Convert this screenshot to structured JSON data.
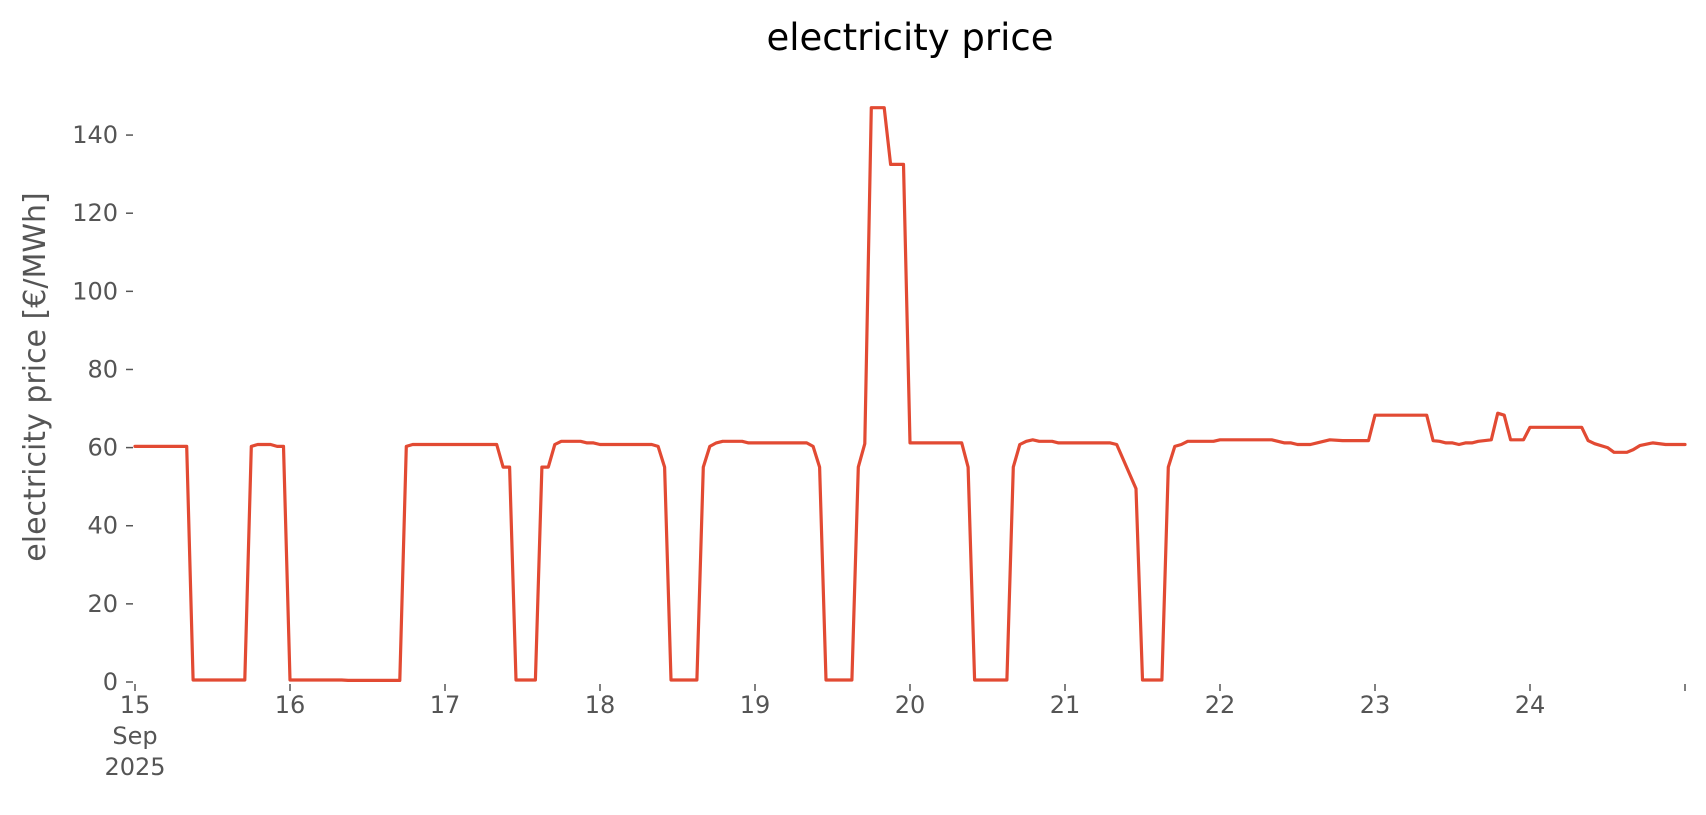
{
  "chart_data": {
    "type": "line",
    "title": "electricity price",
    "xlabel": "",
    "ylabel": "electricity price [€/MWh]",
    "x_is_date": true,
    "xlim": [
      "2025-09-15 00:00",
      "2025-09-25 00:00"
    ],
    "ylim": [
      0,
      150
    ],
    "grid": false,
    "legend": "none",
    "line_color": "#E24A33",
    "yticks": [
      0,
      20,
      40,
      60,
      80,
      100,
      120,
      140
    ],
    "ytick_labels": [
      "0",
      "20",
      "40",
      "60",
      "80",
      "100",
      "120",
      "140"
    ],
    "xticks": [
      {
        "date": "2025-09-15",
        "lines": [
          "15",
          "Sep",
          "2025"
        ]
      },
      {
        "date": "2025-09-16",
        "lines": [
          "16"
        ]
      },
      {
        "date": "2025-09-17",
        "lines": [
          "17"
        ]
      },
      {
        "date": "2025-09-18",
        "lines": [
          "18"
        ]
      },
      {
        "date": "2025-09-19",
        "lines": [
          "19"
        ]
      },
      {
        "date": "2025-09-20",
        "lines": [
          "20"
        ]
      },
      {
        "date": "2025-09-21",
        "lines": [
          "21"
        ]
      },
      {
        "date": "2025-09-22",
        "lines": [
          "22"
        ]
      },
      {
        "date": "2025-09-23",
        "lines": [
          "23"
        ]
      },
      {
        "date": "2025-09-24",
        "lines": [
          "24"
        ]
      },
      {
        "date": "2025-09-25",
        "lines": [
          ""
        ]
      }
    ],
    "series": [
      {
        "points": [
          [
            "2025-09-15 00:00",
            60.3
          ],
          [
            "2025-09-15 08:00",
            60.3
          ],
          [
            "2025-09-15 09:00",
            0.5
          ],
          [
            "2025-09-15 17:00",
            0.5
          ],
          [
            "2025-09-15 18:00",
            60.3
          ],
          [
            "2025-09-15 19:00",
            60.8
          ],
          [
            "2025-09-15 21:00",
            60.8
          ],
          [
            "2025-09-15 22:00",
            60.3
          ],
          [
            "2025-09-15 23:00",
            60.3
          ],
          [
            "2025-09-16 00:00",
            0.5
          ],
          [
            "2025-09-16 08:00",
            0.5
          ],
          [
            "2025-09-16 09:00",
            0.4
          ],
          [
            "2025-09-16 17:00",
            0.4
          ],
          [
            "2025-09-16 18:00",
            60.3
          ],
          [
            "2025-09-16 19:00",
            60.8
          ],
          [
            "2025-09-17 08:00",
            60.8
          ],
          [
            "2025-09-17 09:00",
            55.0
          ],
          [
            "2025-09-17 10:00",
            55.0
          ],
          [
            "2025-09-17 11:00",
            0.5
          ],
          [
            "2025-09-17 14:00",
            0.5
          ],
          [
            "2025-09-17 15:00",
            55.0
          ],
          [
            "2025-09-17 16:00",
            55.0
          ],
          [
            "2025-09-17 17:00",
            60.8
          ],
          [
            "2025-09-17 18:00",
            61.6
          ],
          [
            "2025-09-17 21:00",
            61.6
          ],
          [
            "2025-09-17 22:00",
            61.2
          ],
          [
            "2025-09-17 23:00",
            61.2
          ],
          [
            "2025-09-18 00:00",
            60.8
          ],
          [
            "2025-09-18 08:00",
            60.8
          ],
          [
            "2025-09-18 09:00",
            60.3
          ],
          [
            "2025-09-18 10:00",
            55.0
          ],
          [
            "2025-09-18 11:00",
            0.5
          ],
          [
            "2025-09-18 15:00",
            0.5
          ],
          [
            "2025-09-18 16:00",
            55.0
          ],
          [
            "2025-09-18 17:00",
            60.3
          ],
          [
            "2025-09-18 18:00",
            61.2
          ],
          [
            "2025-09-18 19:00",
            61.6
          ],
          [
            "2025-09-18 22:00",
            61.6
          ],
          [
            "2025-09-18 23:00",
            61.2
          ],
          [
            "2025-09-19 08:00",
            61.2
          ],
          [
            "2025-09-19 09:00",
            60.3
          ],
          [
            "2025-09-19 10:00",
            55.0
          ],
          [
            "2025-09-19 11:00",
            0.5
          ],
          [
            "2025-09-19 15:00",
            0.5
          ],
          [
            "2025-09-19 16:00",
            55.0
          ],
          [
            "2025-09-19 17:00",
            61.0
          ],
          [
            "2025-09-19 18:00",
            147.0
          ],
          [
            "2025-09-19 20:00",
            147.0
          ],
          [
            "2025-09-19 21:00",
            132.5
          ],
          [
            "2025-09-19 23:00",
            132.5
          ],
          [
            "2025-09-20 00:00",
            61.2
          ],
          [
            "2025-09-20 08:00",
            61.2
          ],
          [
            "2025-09-20 09:00",
            55.0
          ],
          [
            "2025-09-20 10:00",
            0.5
          ],
          [
            "2025-09-20 15:00",
            0.5
          ],
          [
            "2025-09-20 16:00",
            55.0
          ],
          [
            "2025-09-20 17:00",
            60.8
          ],
          [
            "2025-09-20 18:00",
            61.6
          ],
          [
            "2025-09-20 19:00",
            62.0
          ],
          [
            "2025-09-20 20:00",
            61.6
          ],
          [
            "2025-09-20 22:00",
            61.6
          ],
          [
            "2025-09-20 23:00",
            61.2
          ],
          [
            "2025-09-21 07:00",
            61.2
          ],
          [
            "2025-09-21 08:00",
            60.8
          ],
          [
            "2025-09-21 11:00",
            49.5
          ],
          [
            "2025-09-21 12:00",
            0.5
          ],
          [
            "2025-09-21 15:00",
            0.5
          ],
          [
            "2025-09-21 16:00",
            55.0
          ],
          [
            "2025-09-21 17:00",
            60.3
          ],
          [
            "2025-09-21 18:00",
            60.8
          ],
          [
            "2025-09-21 19:00",
            61.6
          ],
          [
            "2025-09-21 23:00",
            61.6
          ],
          [
            "2025-09-22 00:00",
            62.0
          ],
          [
            "2025-09-22 08:00",
            62.0
          ],
          [
            "2025-09-22 10:00",
            61.2
          ],
          [
            "2025-09-22 11:00",
            61.2
          ],
          [
            "2025-09-22 12:00",
            60.8
          ],
          [
            "2025-09-22 14:00",
            60.8
          ],
          [
            "2025-09-22 15:00",
            61.2
          ],
          [
            "2025-09-22 17:00",
            62.0
          ],
          [
            "2025-09-22 19:00",
            61.8
          ],
          [
            "2025-09-22 23:00",
            61.8
          ],
          [
            "2025-09-23 00:00",
            68.3
          ],
          [
            "2025-09-23 08:00",
            68.3
          ],
          [
            "2025-09-23 09:00",
            61.8
          ],
          [
            "2025-09-23 10:00",
            61.6
          ],
          [
            "2025-09-23 11:00",
            61.2
          ],
          [
            "2025-09-23 12:00",
            61.2
          ],
          [
            "2025-09-23 13:00",
            60.8
          ],
          [
            "2025-09-23 14:00",
            61.2
          ],
          [
            "2025-09-23 15:00",
            61.2
          ],
          [
            "2025-09-23 16:00",
            61.6
          ],
          [
            "2025-09-23 18:00",
            62.0
          ],
          [
            "2025-09-23 19:00",
            68.8
          ],
          [
            "2025-09-23 20:00",
            68.3
          ],
          [
            "2025-09-23 21:00",
            62.0
          ],
          [
            "2025-09-23 23:00",
            62.0
          ],
          [
            "2025-09-24 00:00",
            65.2
          ],
          [
            "2025-09-24 08:00",
            65.2
          ],
          [
            "2025-09-24 09:00",
            61.8
          ],
          [
            "2025-09-24 10:00",
            61.0
          ],
          [
            "2025-09-24 12:00",
            60.0
          ],
          [
            "2025-09-24 13:00",
            58.8
          ],
          [
            "2025-09-24 15:00",
            58.8
          ],
          [
            "2025-09-24 16:00",
            59.5
          ],
          [
            "2025-09-24 17:00",
            60.5
          ],
          [
            "2025-09-24 19:00",
            61.2
          ],
          [
            "2025-09-24 21:00",
            60.8
          ],
          [
            "2025-09-25 00:00",
            60.8
          ]
        ]
      }
    ]
  }
}
